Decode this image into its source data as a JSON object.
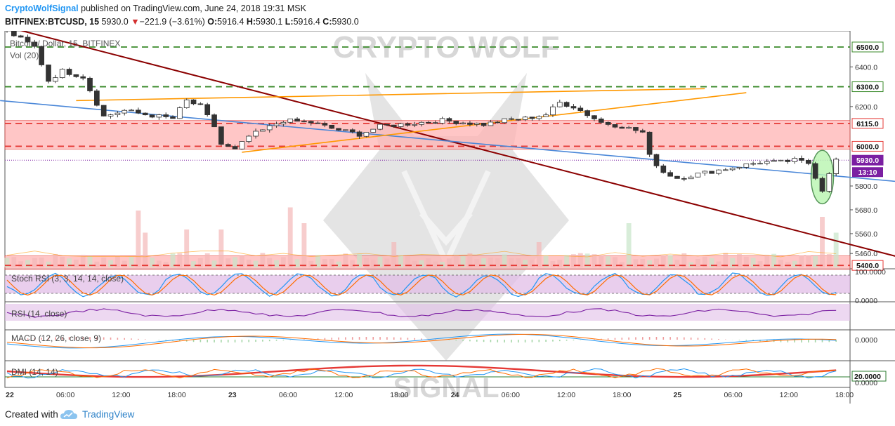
{
  "header": {
    "brand": "CryptoWolfSignal",
    "published": " published on TradingView.com, June 24, 2018 19:31 MSK",
    "symbol": "BITFINEX:BTCUSD, 15",
    "last": "5930.0",
    "change_arrow": "▼",
    "change": "−221.9 (−3.61%)",
    "o_label": "O:",
    "o_value": "5916.4",
    "h_label": "H:",
    "h_value": "5930.1",
    "l_label": "L:",
    "l_value": "5916.4",
    "c_label": "C:",
    "c_value": "5930.0"
  },
  "footer": {
    "created_with": "Created with",
    "brand": "TradingView"
  },
  "colors": {
    "up": "#2e7d32",
    "down": "#d32f2f",
    "candle": "#333333",
    "green_level": "#3a8a2a",
    "red_level": "#e53935",
    "red_zone": "#ffb3b3",
    "orange": "#ff9800",
    "blue": "#4a87d8",
    "dark_red": "#8b0000",
    "stoch_k": "#2196f3",
    "stoch_d": "#ff6d00",
    "rsi": "#7b1fa2",
    "adx": "#e53935",
    "circle": "#2e7d32",
    "circle_fill": "#b9f6b0"
  },
  "chart_data": {
    "type": "candlestick",
    "main": {
      "title": "Bitcoin / Dollar, 15, BITFINEX",
      "volume_label": "Vol (20)",
      "watermark_top": "CRYPTO WOLF",
      "watermark_bottom": "SIGNAL",
      "ylim": [
        5390,
        6560
      ],
      "y_ticks": [
        "6500.0",
        "6400.0",
        "6300.0",
        "6200.0",
        "6115.0",
        "6000.0",
        "5930.0",
        "5800.0",
        "5680.0",
        "5560.0",
        "5460.0",
        "5400.0"
      ],
      "x_ticks": [
        "22",
        "06:00",
        "12:00",
        "18:00",
        "23",
        "06:00",
        "12:00",
        "18:00",
        "24",
        "06:00",
        "12:00",
        "18:00",
        "25",
        "06:00",
        "12:00",
        "18:00"
      ],
      "countdown": "13:10",
      "current_price": 5930.0,
      "levels": [
        {
          "value": 6500,
          "style": "green"
        },
        {
          "value": 6300,
          "style": "green"
        },
        {
          "value": 6115,
          "style": "red"
        },
        {
          "value": 6000,
          "style": "red"
        },
        {
          "value": 5400,
          "style": "red"
        }
      ],
      "zones": [
        {
          "from": 5985,
          "to": 6130
        },
        {
          "from": 5380,
          "to": 5448
        }
      ],
      "path": [
        [
          0,
          6580
        ],
        [
          4,
          6500
        ],
        [
          6,
          6330
        ],
        [
          8,
          6380
        ],
        [
          11,
          6350
        ],
        [
          14,
          6150
        ],
        [
          17,
          6180
        ],
        [
          20,
          6160
        ],
        [
          24,
          6140
        ],
        [
          26,
          6230
        ],
        [
          28,
          6200
        ],
        [
          30,
          6100
        ],
        [
          31,
          6010
        ],
        [
          33,
          5980
        ],
        [
          35,
          6050
        ],
        [
          37,
          6080
        ],
        [
          40,
          6130
        ],
        [
          44,
          6120
        ],
        [
          47,
          6090
        ],
        [
          51,
          6060
        ],
        [
          54,
          6100
        ],
        [
          57,
          6110
        ],
        [
          60,
          6120
        ],
        [
          63,
          6130
        ],
        [
          66,
          6120
        ],
        [
          69,
          6110
        ],
        [
          72,
          6130
        ],
        [
          75,
          6140
        ],
        [
          78,
          6160
        ],
        [
          80,
          6220
        ],
        [
          82,
          6200
        ],
        [
          84,
          6160
        ],
        [
          86,
          6120
        ],
        [
          89,
          6100
        ],
        [
          92,
          6070
        ],
        [
          93,
          5950
        ],
        [
          95,
          5870
        ],
        [
          97,
          5840
        ],
        [
          100,
          5860
        ],
        [
          103,
          5880
        ],
        [
          106,
          5900
        ],
        [
          109,
          5920
        ],
        [
          112,
          5920
        ],
        [
          114,
          5930
        ],
        [
          116,
          5915
        ],
        [
          118,
          5780
        ],
        [
          119,
          5870
        ],
        [
          120,
          5930
        ]
      ],
      "vol_spikes": [
        [
          19,
          0.9
        ],
        [
          20,
          0.55
        ],
        [
          26,
          0.6
        ],
        [
          31,
          0.6
        ],
        [
          41,
          0.95
        ],
        [
          43,
          0.7
        ],
        [
          56,
          0.4
        ],
        [
          77,
          0.4
        ],
        [
          90,
          0.7
        ],
        [
          118,
          0.8
        ],
        [
          120,
          0.55
        ]
      ]
    },
    "indicators": [
      {
        "label": "Stoch RSI (3, 3, 14, 14, close)",
        "ticks": [
          "100.0000",
          "0.0000"
        ]
      },
      {
        "label": "RSI (14, close)",
        "ticks": []
      },
      {
        "label": "MACD (12, 26, close, 9)",
        "ticks": [
          "0.0000"
        ]
      },
      {
        "label": "DMI (14, 14)",
        "ticks": [
          "20.0000",
          "0.0000"
        ]
      }
    ]
  }
}
